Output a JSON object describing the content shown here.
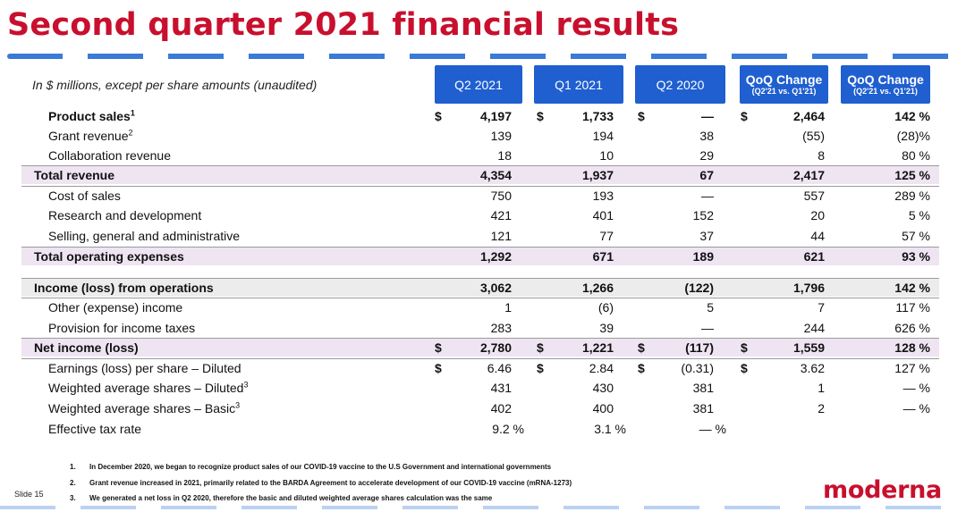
{
  "title": "Second quarter 2021 financial results",
  "subtitle": "In $ millions, except per share amounts (unaudited)",
  "columns": [
    {
      "main": "Q2 2021",
      "sub": ""
    },
    {
      "main": "Q1 2021",
      "sub": ""
    },
    {
      "main": "Q2 2020",
      "sub": ""
    },
    {
      "main": "QoQ Change",
      "sub": "(Q2'21 vs. Q1'21)"
    },
    {
      "main": "QoQ Change",
      "sub": "(Q2'21 vs. Q1'21)"
    }
  ],
  "rows": [
    {
      "label": "Product sales",
      "sup": "1",
      "values": [
        "4,197",
        "1,733",
        "—",
        "2,464",
        "142 %"
      ],
      "currency": [
        "$",
        "$",
        "$",
        "$"
      ]
    },
    {
      "label": "Grant revenue",
      "sup": "2",
      "values": [
        "139",
        "194",
        "38",
        "(55)",
        "(28)%"
      ],
      "currency": []
    },
    {
      "label": "Collaboration revenue",
      "sup": "",
      "values": [
        "18",
        "10",
        "29",
        "8",
        "80 %"
      ],
      "currency": []
    },
    {
      "label": "Total revenue",
      "sup": "",
      "values": [
        "4,354",
        "1,937",
        "67",
        "2,417",
        "125 %"
      ],
      "currency": []
    },
    {
      "label": "Cost of sales",
      "sup": "",
      "values": [
        "750",
        "193",
        "—",
        "557",
        "289 %"
      ],
      "currency": []
    },
    {
      "label": "Research and development",
      "sup": "",
      "values": [
        "421",
        "401",
        "152",
        "20",
        "5 %"
      ],
      "currency": []
    },
    {
      "label": "Selling, general and administrative",
      "sup": "",
      "values": [
        "121",
        "77",
        "37",
        "44",
        "57 %"
      ],
      "currency": []
    },
    {
      "label": "Total operating expenses",
      "sup": "",
      "values": [
        "1,292",
        "671",
        "189",
        "621",
        "93 %"
      ],
      "currency": []
    },
    {
      "label": "Income (loss) from operations",
      "sup": "",
      "values": [
        "3,062",
        "1,266",
        "(122)",
        "1,796",
        "142 %"
      ],
      "currency": []
    },
    {
      "label": "Other (expense) income",
      "sup": "",
      "values": [
        "1",
        "(6)",
        "5",
        "7",
        "117 %"
      ],
      "currency": []
    },
    {
      "label": "Provision for income taxes",
      "sup": "",
      "values": [
        "283",
        "39",
        "—",
        "244",
        "626 %"
      ],
      "currency": []
    },
    {
      "label": "Net income (loss)",
      "sup": "",
      "values": [
        "2,780",
        "1,221",
        "(117)",
        "1,559",
        "128 %"
      ],
      "currency": [
        "$",
        "$",
        "$",
        "$"
      ]
    },
    {
      "label": "Earnings (loss) per share – Diluted",
      "sup": "",
      "values": [
        "6.46",
        "2.84",
        "(0.31)",
        "3.62",
        "127 %"
      ],
      "currency": [
        "$",
        "$",
        "$",
        "$"
      ]
    },
    {
      "label": "Weighted average shares – Diluted",
      "sup": "3",
      "values": [
        "431",
        "430",
        "381",
        "1",
        "— %"
      ],
      "currency": []
    },
    {
      "label": "Weighted average shares – Basic",
      "sup": "3",
      "values": [
        "402",
        "400",
        "381",
        "2",
        "— %"
      ],
      "currency": []
    },
    {
      "label": "Effective tax rate",
      "sup": "",
      "values": [
        "9.2 %",
        "3.1 %",
        "— %",
        "",
        ""
      ],
      "currency": []
    }
  ],
  "footnotes": [
    {
      "num": "1.",
      "text": "In December 2020, we began to recognize product sales of our COVID-19 vaccine to the U.S Government and international governments"
    },
    {
      "num": "2.",
      "text": "Grant revenue increased in 2021, primarily related to the BARDA Agreement to accelerate development of our COVID-19 vaccine (mRNA-1273)"
    },
    {
      "num": "3.",
      "text": "We generated a net loss in Q2 2020, therefore the basic and diluted weighted average shares calculation was the same"
    }
  ],
  "slide_label": "Slide 15",
  "logo_text": "moderna",
  "colors": {
    "title": "#c8102e",
    "header": "#1f5fd0",
    "highlight": "#efe4f2"
  }
}
